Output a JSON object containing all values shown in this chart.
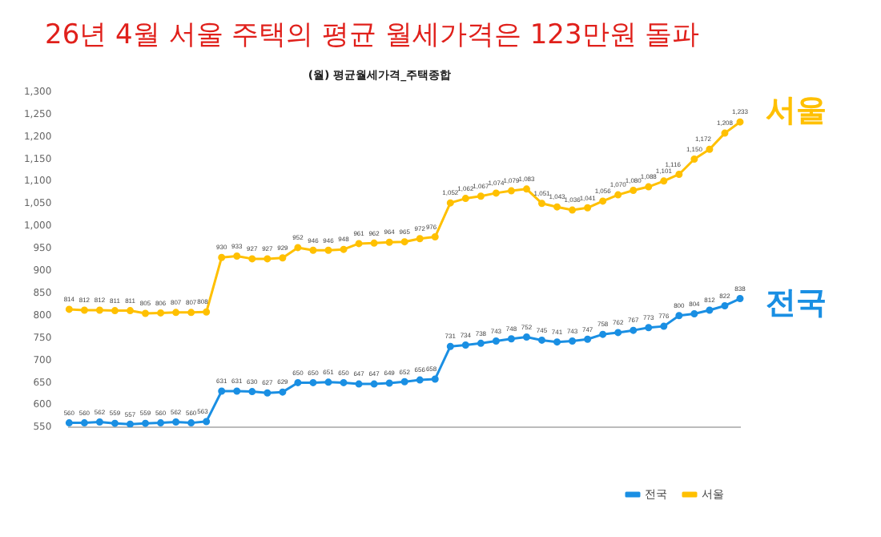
{
  "chart_data": {
    "type": "line",
    "title": "26년 4월 서울 주택의 평균 월세가격은 123만원 돌파",
    "subtitle": "(월) 평균월세가격_주택종합",
    "categories": [
      null,
      null,
      null,
      null,
      null,
      null,
      null,
      null,
      null,
      null,
      null,
      null,
      null,
      null,
      null,
      null,
      null,
      null,
      null,
      null,
      null,
      null,
      null,
      null,
      null,
      null,
      null,
      null,
      null,
      null,
      null,
      null,
      null,
      null,
      null,
      null,
      null,
      null,
      null,
      null,
      null,
      null,
      null,
      null,
      null
    ],
    "series": [
      {
        "name": "전국",
        "color": "#1a8fe3",
        "values": [
          560,
          560,
          562,
          559,
          557,
          559,
          560,
          562,
          560,
          563,
          631,
          631,
          630,
          627,
          629,
          650,
          650,
          651,
          650,
          647,
          647,
          649,
          652,
          656,
          658,
          731,
          734,
          738,
          743,
          748,
          752,
          745,
          741,
          743,
          747,
          758,
          762,
          767,
          773,
          776,
          800,
          804,
          812,
          822,
          838
        ],
        "value_labels": [
          "560",
          "560",
          "562",
          "559",
          "557",
          "559",
          "560",
          "562",
          "560",
          "563",
          "631",
          "631",
          "630",
          "627",
          "629",
          "650",
          "650",
          "651",
          "650",
          "647",
          "647",
          "649",
          "652",
          "656",
          "658",
          "731",
          "734",
          "738",
          "743",
          "748",
          "752",
          "745",
          "741",
          "743",
          "747",
          "758",
          "762",
          "767",
          "773",
          "776",
          "800",
          "804",
          "812",
          "822",
          "838"
        ]
      },
      {
        "name": "서울",
        "color": "#ffc000",
        "values": [
          814,
          812,
          812,
          811,
          811,
          805,
          806,
          807,
          807,
          808,
          930,
          933,
          927,
          927,
          929,
          952,
          946,
          946,
          948,
          961,
          962,
          964,
          965,
          972,
          976,
          1052,
          1062,
          1067,
          1074,
          1079,
          1083,
          1051,
          1043,
          1036,
          1041,
          1056,
          1070,
          1080,
          1088,
          1101,
          1116,
          1150,
          1172,
          1208,
          1233
        ],
        "value_labels": [
          "814",
          "812",
          "812",
          "811",
          "811",
          "805",
          "806",
          "807",
          "807",
          "808",
          "930",
          "933",
          "927",
          "927",
          "929",
          "952",
          "946",
          "946",
          "948",
          "961",
          "962",
          "964",
          "965",
          "972",
          "976",
          "1,052",
          "1,062",
          "1,067",
          "1,074",
          "1,079",
          "1,083",
          "1,051",
          "1,043",
          "1,036",
          "1,041",
          "1,056",
          "1,070",
          "1,080",
          "1,088",
          "1,101",
          "1,116",
          "1,150",
          "1,172",
          "1,208",
          "1,233"
        ]
      }
    ],
    "ylim": [
      550,
      1300
    ],
    "yticks": [
      550,
      600,
      650,
      700,
      750,
      800,
      850,
      900,
      950,
      {
        "value": 1000,
        "label": "1,000"
      },
      {
        "value": 1050,
        "label": "1,050"
      },
      {
        "value": 1100,
        "label": "1,100"
      },
      {
        "value": 1150,
        "label": "1,150"
      },
      {
        "value": 1200,
        "label": "1,200"
      },
      {
        "value": 1250,
        "label": "1,250"
      },
      {
        "value": 1300,
        "label": "1,300"
      }
    ],
    "legend": "bottom",
    "marker": "circle",
    "line_style": "solid",
    "grid": false
  }
}
